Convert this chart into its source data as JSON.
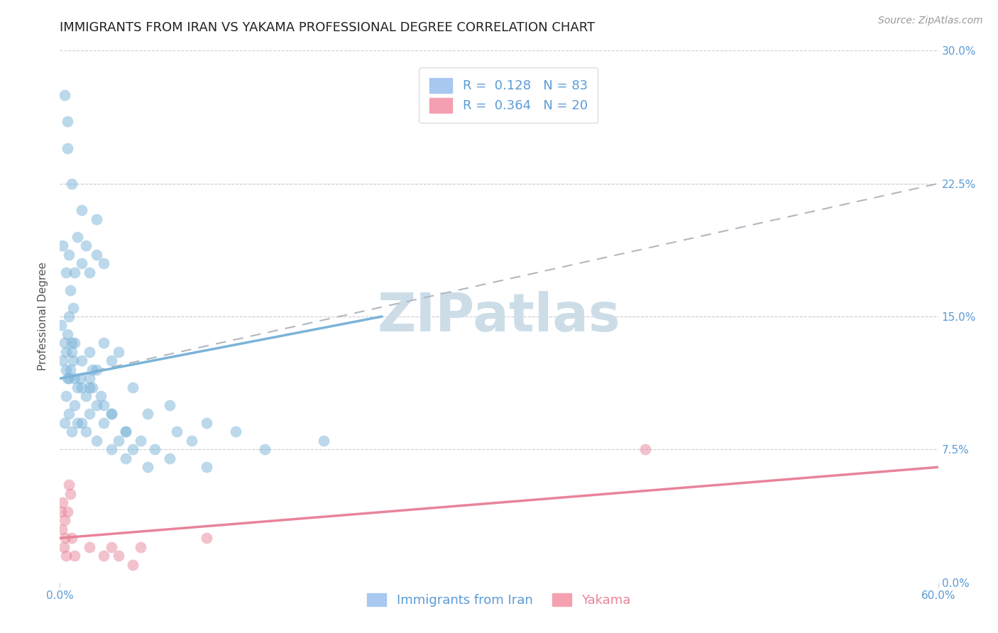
{
  "title": "IMMIGRANTS FROM IRAN VS YAKAMA PROFESSIONAL DEGREE CORRELATION CHART",
  "source": "Source: ZipAtlas.com",
  "ylabel": "Professional Degree",
  "ytick_values": [
    0.0,
    7.5,
    15.0,
    22.5,
    30.0
  ],
  "xlim": [
    0.0,
    60.0
  ],
  "ylim": [
    0.0,
    30.0
  ],
  "blue_scatter": [
    [
      0.3,
      27.5
    ],
    [
      0.5,
      24.5
    ],
    [
      1.5,
      21.0
    ],
    [
      2.5,
      20.5
    ],
    [
      0.8,
      22.5
    ],
    [
      1.2,
      19.5
    ],
    [
      0.6,
      18.5
    ],
    [
      1.8,
      19.0
    ],
    [
      0.4,
      17.5
    ],
    [
      0.7,
      16.5
    ],
    [
      1.5,
      18.0
    ],
    [
      0.9,
      15.5
    ],
    [
      2.0,
      17.5
    ],
    [
      2.5,
      18.5
    ],
    [
      3.0,
      18.0
    ],
    [
      0.2,
      19.0
    ],
    [
      0.1,
      14.5
    ],
    [
      0.3,
      13.5
    ],
    [
      0.5,
      14.0
    ],
    [
      0.8,
      13.0
    ],
    [
      1.0,
      13.5
    ],
    [
      1.5,
      12.5
    ],
    [
      2.0,
      13.0
    ],
    [
      2.5,
      12.0
    ],
    [
      3.0,
      13.5
    ],
    [
      3.5,
      12.5
    ],
    [
      4.0,
      13.0
    ],
    [
      0.4,
      12.0
    ],
    [
      0.6,
      11.5
    ],
    [
      1.2,
      11.0
    ],
    [
      1.8,
      10.5
    ],
    [
      2.2,
      11.0
    ],
    [
      3.0,
      10.0
    ],
    [
      5.0,
      11.0
    ],
    [
      6.0,
      9.5
    ],
    [
      7.5,
      10.0
    ],
    [
      0.4,
      10.5
    ],
    [
      0.6,
      9.5
    ],
    [
      1.0,
      10.0
    ],
    [
      1.5,
      9.0
    ],
    [
      2.0,
      9.5
    ],
    [
      2.5,
      10.0
    ],
    [
      3.5,
      9.5
    ],
    [
      4.5,
      8.5
    ],
    [
      0.2,
      12.5
    ],
    [
      0.5,
      11.5
    ],
    [
      0.7,
      12.0
    ],
    [
      1.0,
      11.5
    ],
    [
      1.5,
      11.0
    ],
    [
      2.0,
      11.5
    ],
    [
      0.3,
      9.0
    ],
    [
      0.8,
      8.5
    ],
    [
      1.2,
      9.0
    ],
    [
      1.8,
      8.5
    ],
    [
      2.5,
      8.0
    ],
    [
      3.0,
      9.0
    ],
    [
      4.0,
      8.0
    ],
    [
      5.0,
      7.5
    ],
    [
      8.0,
      8.5
    ],
    [
      9.0,
      8.0
    ],
    [
      0.4,
      13.0
    ],
    [
      0.9,
      12.5
    ],
    [
      1.4,
      11.5
    ],
    [
      2.0,
      11.0
    ],
    [
      2.8,
      10.5
    ],
    [
      3.5,
      9.5
    ],
    [
      4.5,
      8.5
    ],
    [
      5.5,
      8.0
    ],
    [
      6.5,
      7.5
    ],
    [
      10.0,
      9.0
    ],
    [
      12.0,
      8.5
    ],
    [
      0.5,
      26.0
    ],
    [
      1.0,
      17.5
    ],
    [
      3.5,
      7.5
    ],
    [
      4.5,
      7.0
    ],
    [
      6.0,
      6.5
    ],
    [
      7.5,
      7.0
    ],
    [
      10.0,
      6.5
    ],
    [
      14.0,
      7.5
    ],
    [
      18.0,
      8.0
    ],
    [
      0.6,
      15.0
    ],
    [
      0.8,
      13.5
    ],
    [
      2.2,
      12.0
    ]
  ],
  "pink_scatter": [
    [
      0.1,
      4.0
    ],
    [
      0.15,
      3.0
    ],
    [
      0.2,
      4.5
    ],
    [
      0.25,
      2.0
    ],
    [
      0.3,
      3.5
    ],
    [
      0.35,
      2.5
    ],
    [
      0.4,
      1.5
    ],
    [
      0.5,
      4.0
    ],
    [
      0.6,
      5.5
    ],
    [
      0.7,
      5.0
    ],
    [
      1.0,
      1.5
    ],
    [
      2.0,
      2.0
    ],
    [
      3.5,
      2.0
    ],
    [
      4.0,
      1.5
    ],
    [
      5.5,
      2.0
    ],
    [
      10.0,
      2.5
    ],
    [
      40.0,
      7.5
    ],
    [
      0.8,
      2.5
    ],
    [
      3.0,
      1.5
    ],
    [
      5.0,
      1.0
    ]
  ],
  "blue_line_x": [
    0.0,
    22.0
  ],
  "blue_line_y": [
    11.5,
    15.0
  ],
  "pink_line_x": [
    0.0,
    60.0
  ],
  "pink_line_y": [
    2.5,
    6.5
  ],
  "dashed_line_x": [
    0.0,
    60.0
  ],
  "dashed_line_y": [
    11.5,
    22.5
  ],
  "blue_color": "#7ab3d9",
  "pink_color": "#e8849a",
  "dashed_color": "#b0b8c0",
  "title_fontsize": 13,
  "axis_label_fontsize": 11,
  "tick_fontsize": 11,
  "legend_fontsize": 13,
  "watermark": "ZIPatlas",
  "watermark_color": "#ccdde8",
  "source_fontsize": 10,
  "tick_color": "#5b9bd5"
}
